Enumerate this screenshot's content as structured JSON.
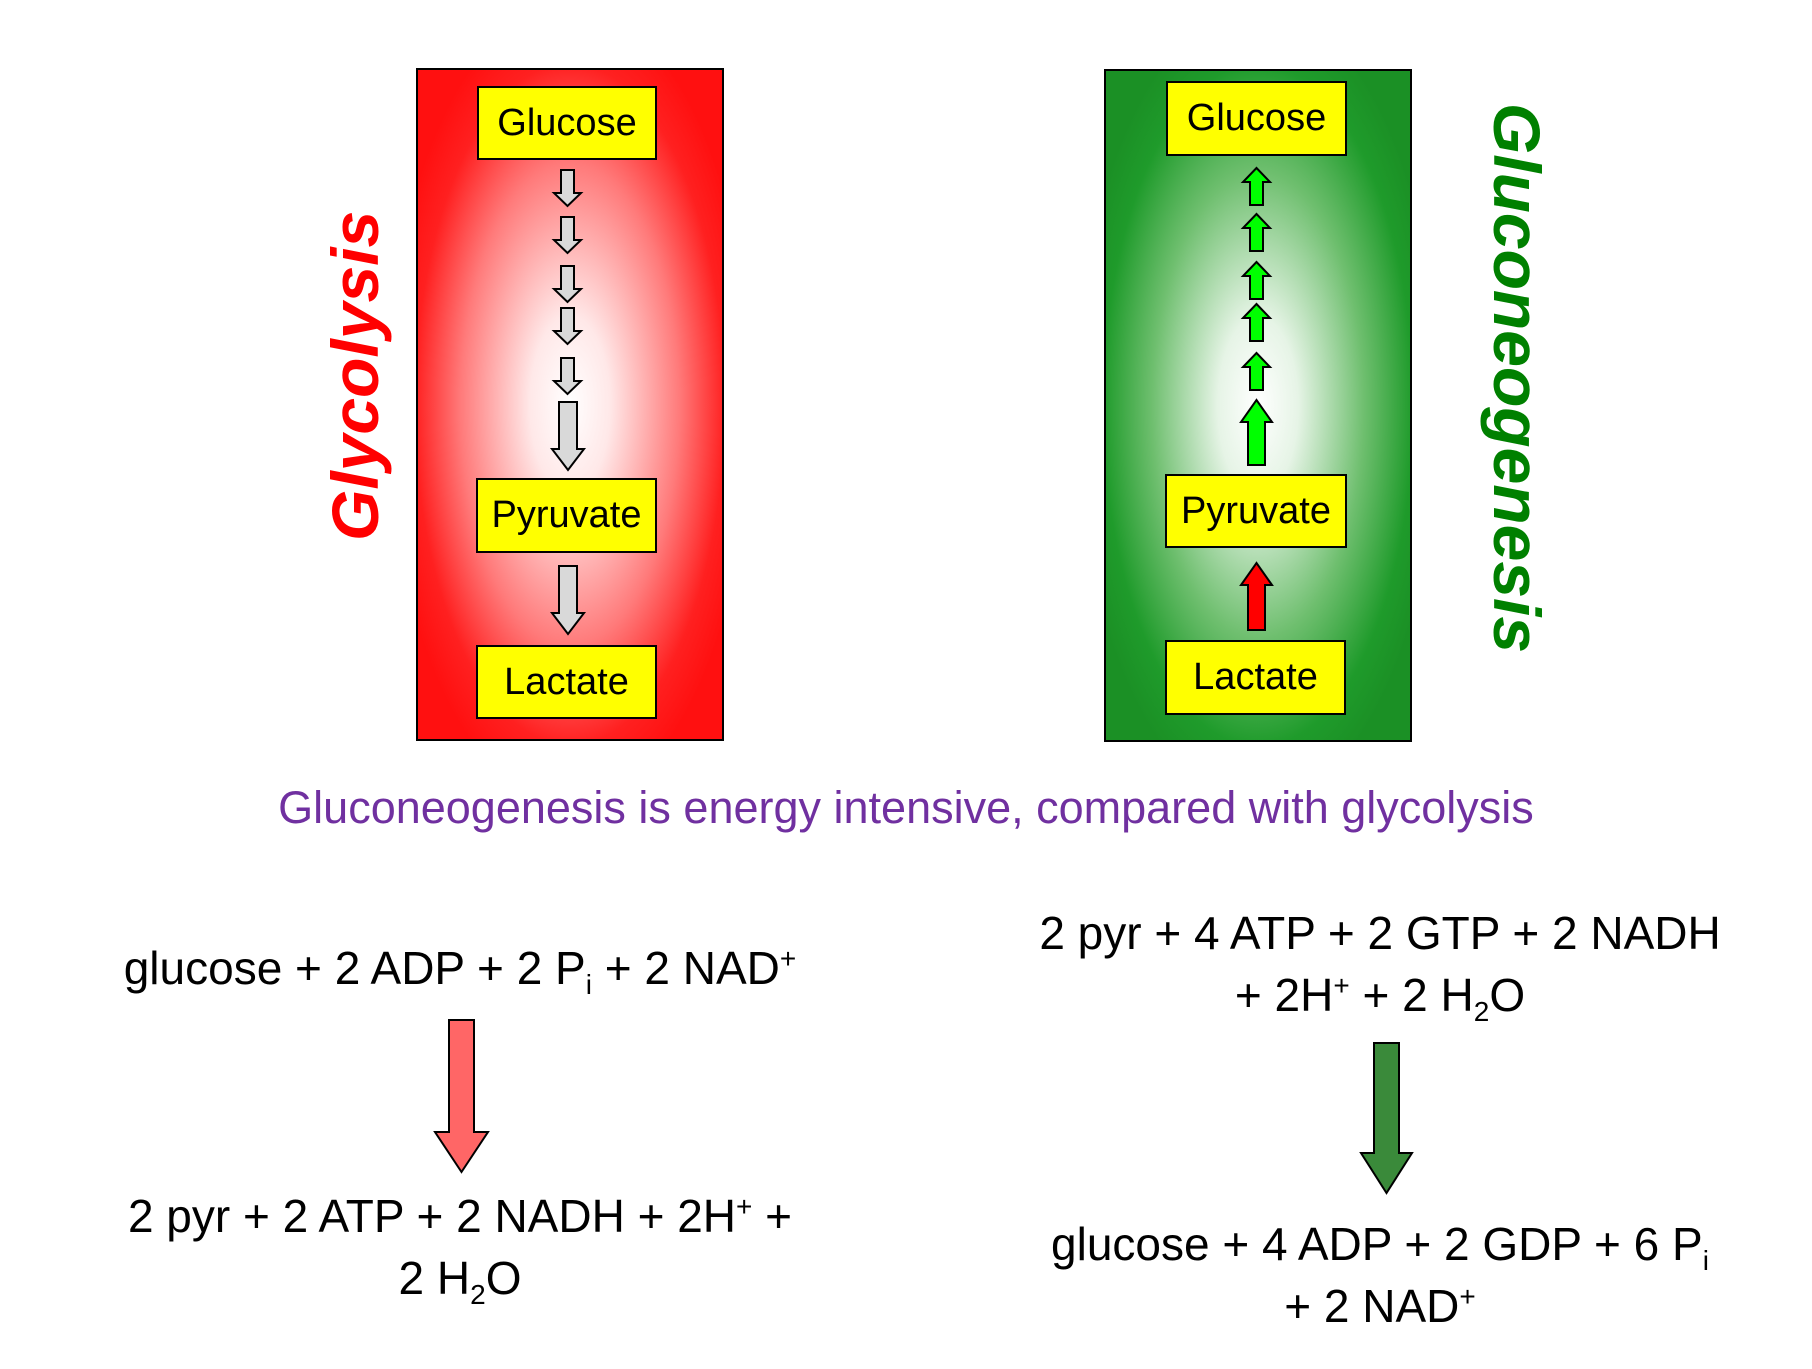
{
  "glycolysis": {
    "title": "Glycolysis",
    "boxes": {
      "glucose": "Glucose",
      "pyruvate": "Pyruvate",
      "lactate": "Lactate"
    }
  },
  "gluconeogenesis": {
    "title": "Gluconeogenesis",
    "boxes": {
      "glucose": "Glucose",
      "pyruvate": "Pyruvate",
      "lactate": "Lactate"
    }
  },
  "caption": "Gluconeogenesis is energy intensive, compared with glycolysis",
  "equations": {
    "glycolysis_reactants": {
      "t1": "glucose + 2 ADP + 2 P",
      "s1": "i",
      "t2": " + 2 NAD",
      "p1": "+"
    },
    "glycolysis_products": {
      "t1": "2 pyr + 2 ATP + 2 NADH + 2H",
      "p1": "+",
      "t2": " +",
      "t3": "2 H",
      "s1": "2",
      "t4": "O"
    },
    "gluconeogenesis_reactants": {
      "t1": "2 pyr + 4 ATP + 2 GTP + 2 NADH",
      "t2": "+ 2H",
      "p1": "+",
      "t3": " + 2 H",
      "s1": "2",
      "t4": "O"
    },
    "gluconeogenesis_products": {
      "t1": "glucose + 4 ADP + 2 GDP + 6 P",
      "s1": "i",
      "t2": "+ 2 NAD",
      "p1": "+"
    }
  },
  "colors": {
    "glycolysis": "#ff0000",
    "gluconeogenesis": "#008000",
    "box_fill": "#ffff00",
    "caption": "#7030a0",
    "arrow_grey": "#d9d9d9",
    "arrow_green": "#00ff00",
    "arrow_red": "#ff0000",
    "big_arrow_left": "#ff6666",
    "big_arrow_right": "#3a8a3a"
  }
}
